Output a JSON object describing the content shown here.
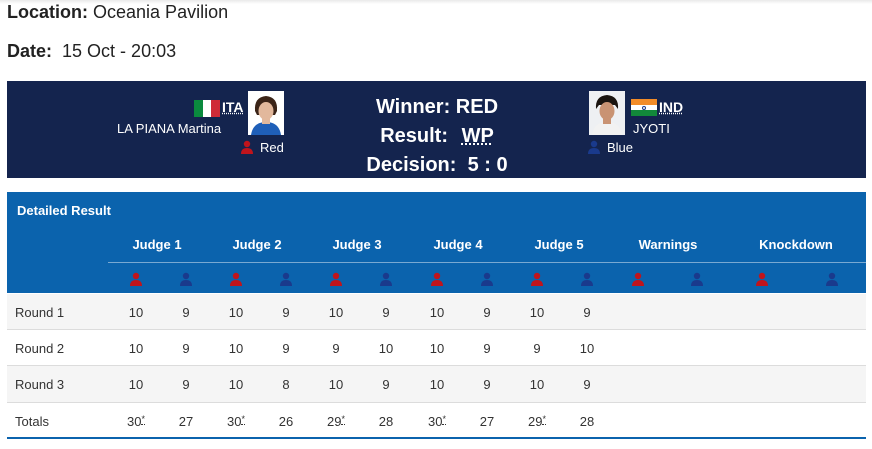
{
  "location": {
    "label": "Location:",
    "value": "Oceania Pavilion"
  },
  "date": {
    "label": "Date:",
    "value": "15 Oct - 20:03"
  },
  "bout": {
    "red": {
      "code": "ITA",
      "name": "LA PIANA Martina",
      "corner": "Red",
      "flag": "italy-flag",
      "corner_color": "#c0141c"
    },
    "blue": {
      "code": "IND",
      "name": "JYOTI",
      "corner": "Blue",
      "flag": "india-flag",
      "corner_color": "#1a3a8c"
    },
    "winner_label": "Winner:",
    "winner_value": "RED",
    "result_label": "Result:",
    "result_value": "WP",
    "decision_label": "Decision:",
    "decision_value": "5 : 0"
  },
  "detail": {
    "title": "Detailed Result",
    "columns": [
      "Judge 1",
      "Judge 2",
      "Judge 3",
      "Judge 4",
      "Judge 5",
      "Warnings",
      "Knockdown"
    ],
    "rows": [
      {
        "label": "Round 1",
        "scores": [
          "10",
          "9",
          "10",
          "9",
          "10",
          "9",
          "10",
          "9",
          "10",
          "9"
        ]
      },
      {
        "label": "Round 2",
        "scores": [
          "10",
          "9",
          "10",
          "9",
          "9",
          "10",
          "10",
          "9",
          "9",
          "10"
        ]
      },
      {
        "label": "Round 3",
        "scores": [
          "10",
          "9",
          "10",
          "8",
          "10",
          "9",
          "10",
          "9",
          "10",
          "9"
        ]
      },
      {
        "label": "Totals",
        "scores": [
          "30",
          "27",
          "30",
          "26",
          "29",
          "28",
          "30",
          "27",
          "29",
          "28"
        ]
      }
    ],
    "totals_mark": "*"
  }
}
